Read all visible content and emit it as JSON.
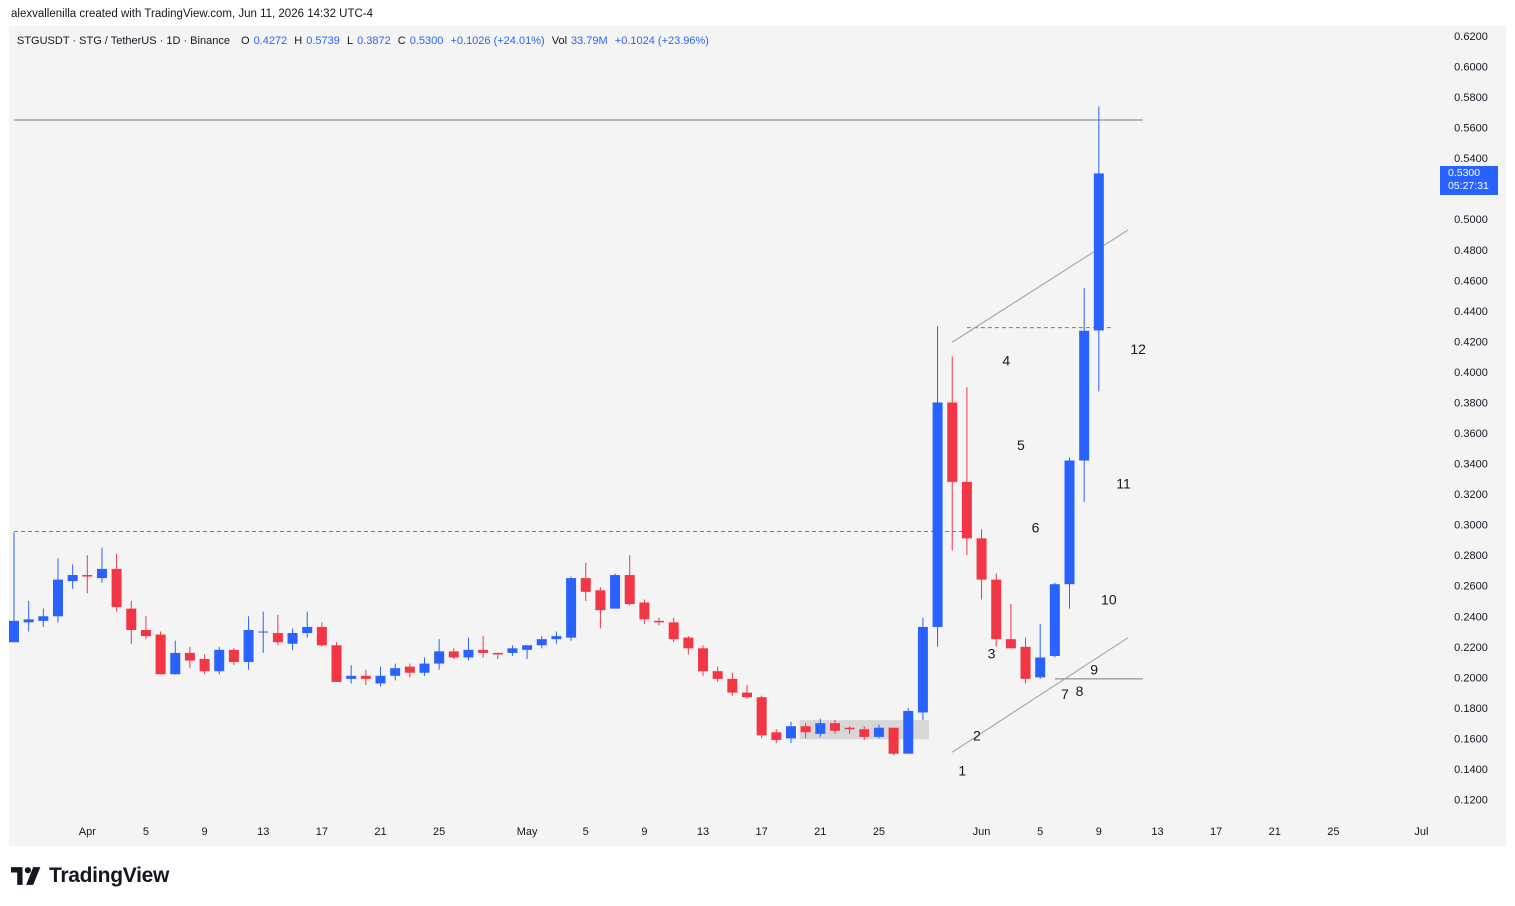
{
  "header": {
    "credit": "alexvallenilla created with TradingView.com, Jun 11, 2026 14:32 UTC-4"
  },
  "legend": {
    "symbol": "STGUSDT · STG / TetherUS · 1D · Binance",
    "open_label": "O",
    "open": "0.4272",
    "high_label": "H",
    "high": "0.5739",
    "low_label": "L",
    "low": "0.3872",
    "close_label": "C",
    "close": "0.5300",
    "change": "+0.1026 (+24.01%)",
    "vol_label": "Vol",
    "vol": "33.79M",
    "vol_change": "+0.1024 (+23.96%)"
  },
  "price_badge": {
    "price": "0.5300",
    "countdown": "05:27:31"
  },
  "footer": {
    "logo_text": "TradingView",
    "logo_icon": "tradingview-logo-icon"
  },
  "colors": {
    "up": "#2962ff",
    "down": "#f23645",
    "accent": "#2962ff",
    "text": "#131722",
    "background": "#f4f4f4",
    "line": "#9e9e9e"
  },
  "chart_data": {
    "type": "candlestick",
    "symbol": "STGUSDT",
    "interval": "1D",
    "ylim": [
      0.11,
      0.625
    ],
    "y_ticks": [
      "0.6200",
      "0.6000",
      "0.5800",
      "0.5600",
      "0.5400",
      "0.5200",
      "0.5000",
      "0.4800",
      "0.4600",
      "0.4400",
      "0.4200",
      "0.4000",
      "0.3800",
      "0.3600",
      "0.3400",
      "0.3200",
      "0.3000",
      "0.2800",
      "0.2600",
      "0.2400",
      "0.2200",
      "0.2000",
      "0.1800",
      "0.1600",
      "0.1400",
      "0.1200"
    ],
    "x_ticks": [
      {
        "label": "Apr",
        "date": "2026-04-01"
      },
      {
        "label": "5",
        "date": "2026-04-05"
      },
      {
        "label": "9",
        "date": "2026-04-09"
      },
      {
        "label": "13",
        "date": "2026-04-13"
      },
      {
        "label": "17",
        "date": "2026-04-17"
      },
      {
        "label": "21",
        "date": "2026-04-21"
      },
      {
        "label": "25",
        "date": "2026-04-25"
      },
      {
        "label": "May",
        "date": "2026-05-01"
      },
      {
        "label": "5",
        "date": "2026-05-05"
      },
      {
        "label": "9",
        "date": "2026-05-09"
      },
      {
        "label": "13",
        "date": "2026-05-13"
      },
      {
        "label": "17",
        "date": "2026-05-17"
      },
      {
        "label": "21",
        "date": "2026-05-21"
      },
      {
        "label": "25",
        "date": "2026-05-25"
      },
      {
        "label": "Jun",
        "date": "2026-06-01"
      },
      {
        "label": "5",
        "date": "2026-06-05"
      },
      {
        "label": "9",
        "date": "2026-06-09"
      },
      {
        "label": "13",
        "date": "2026-06-13"
      },
      {
        "label": "17",
        "date": "2026-06-17"
      },
      {
        "label": "21",
        "date": "2026-06-21"
      },
      {
        "label": "25",
        "date": "2026-06-25"
      },
      {
        "label": "Jul",
        "date": "2026-07-01"
      }
    ],
    "first_date": "2026-03-27",
    "candles": [
      {
        "o": 0.223,
        "h": 0.295,
        "l": 0.223,
        "c": 0.237
      },
      {
        "o": 0.236,
        "h": 0.25,
        "l": 0.23,
        "c": 0.238
      },
      {
        "o": 0.237,
        "h": 0.245,
        "l": 0.233,
        "c": 0.24
      },
      {
        "o": 0.24,
        "h": 0.278,
        "l": 0.236,
        "c": 0.264
      },
      {
        "o": 0.263,
        "h": 0.274,
        "l": 0.258,
        "c": 0.267
      },
      {
        "o": 0.267,
        "h": 0.28,
        "l": 0.255,
        "c": 0.266
      },
      {
        "o": 0.265,
        "h": 0.285,
        "l": 0.262,
        "c": 0.271
      },
      {
        "o": 0.271,
        "h": 0.281,
        "l": 0.243,
        "c": 0.246
      },
      {
        "o": 0.245,
        "h": 0.25,
        "l": 0.222,
        "c": 0.231
      },
      {
        "o": 0.231,
        "h": 0.24,
        "l": 0.225,
        "c": 0.227
      },
      {
        "o": 0.228,
        "h": 0.23,
        "l": 0.202,
        "c": 0.202
      },
      {
        "o": 0.202,
        "h": 0.224,
        "l": 0.202,
        "c": 0.216
      },
      {
        "o": 0.216,
        "h": 0.22,
        "l": 0.206,
        "c": 0.211
      },
      {
        "o": 0.212,
        "h": 0.215,
        "l": 0.202,
        "c": 0.204
      },
      {
        "o": 0.204,
        "h": 0.22,
        "l": 0.202,
        "c": 0.218
      },
      {
        "o": 0.218,
        "h": 0.219,
        "l": 0.208,
        "c": 0.21
      },
      {
        "o": 0.21,
        "h": 0.24,
        "l": 0.205,
        "c": 0.231
      },
      {
        "o": 0.23,
        "h": 0.243,
        "l": 0.216,
        "c": 0.23
      },
      {
        "o": 0.229,
        "h": 0.241,
        "l": 0.221,
        "c": 0.223
      },
      {
        "o": 0.222,
        "h": 0.232,
        "l": 0.218,
        "c": 0.229
      },
      {
        "o": 0.229,
        "h": 0.243,
        "l": 0.226,
        "c": 0.233
      },
      {
        "o": 0.233,
        "h": 0.236,
        "l": 0.22,
        "c": 0.221
      },
      {
        "o": 0.221,
        "h": 0.223,
        "l": 0.197,
        "c": 0.197
      },
      {
        "o": 0.199,
        "h": 0.208,
        "l": 0.196,
        "c": 0.201
      },
      {
        "o": 0.201,
        "h": 0.205,
        "l": 0.195,
        "c": 0.199
      },
      {
        "o": 0.196,
        "h": 0.207,
        "l": 0.194,
        "c": 0.201
      },
      {
        "o": 0.201,
        "h": 0.209,
        "l": 0.198,
        "c": 0.206
      },
      {
        "o": 0.207,
        "h": 0.209,
        "l": 0.2,
        "c": 0.203
      },
      {
        "o": 0.203,
        "h": 0.213,
        "l": 0.201,
        "c": 0.209
      },
      {
        "o": 0.209,
        "h": 0.225,
        "l": 0.205,
        "c": 0.217
      },
      {
        "o": 0.217,
        "h": 0.219,
        "l": 0.212,
        "c": 0.213
      },
      {
        "o": 0.213,
        "h": 0.226,
        "l": 0.211,
        "c": 0.218
      },
      {
        "o": 0.218,
        "h": 0.227,
        "l": 0.213,
        "c": 0.216
      },
      {
        "o": 0.216,
        "h": 0.216,
        "l": 0.212,
        "c": 0.215
      },
      {
        "o": 0.216,
        "h": 0.221,
        "l": 0.214,
        "c": 0.219
      },
      {
        "o": 0.218,
        "h": 0.221,
        "l": 0.212,
        "c": 0.221
      },
      {
        "o": 0.221,
        "h": 0.227,
        "l": 0.219,
        "c": 0.225
      },
      {
        "o": 0.225,
        "h": 0.23,
        "l": 0.222,
        "c": 0.227
      },
      {
        "o": 0.226,
        "h": 0.266,
        "l": 0.224,
        "c": 0.265
      },
      {
        "o": 0.265,
        "h": 0.275,
        "l": 0.25,
        "c": 0.256
      },
      {
        "o": 0.257,
        "h": 0.259,
        "l": 0.232,
        "c": 0.244
      },
      {
        "o": 0.245,
        "h": 0.268,
        "l": 0.245,
        "c": 0.267
      },
      {
        "o": 0.267,
        "h": 0.28,
        "l": 0.247,
        "c": 0.248
      },
      {
        "o": 0.249,
        "h": 0.251,
        "l": 0.235,
        "c": 0.238
      },
      {
        "o": 0.237,
        "h": 0.239,
        "l": 0.234,
        "c": 0.236
      },
      {
        "o": 0.236,
        "h": 0.239,
        "l": 0.223,
        "c": 0.225
      },
      {
        "o": 0.226,
        "h": 0.227,
        "l": 0.215,
        "c": 0.219
      },
      {
        "o": 0.219,
        "h": 0.221,
        "l": 0.201,
        "c": 0.204
      },
      {
        "o": 0.204,
        "h": 0.207,
        "l": 0.197,
        "c": 0.199
      },
      {
        "o": 0.199,
        "h": 0.203,
        "l": 0.188,
        "c": 0.19
      },
      {
        "o": 0.19,
        "h": 0.195,
        "l": 0.186,
        "c": 0.187
      },
      {
        "o": 0.187,
        "h": 0.188,
        "l": 0.16,
        "c": 0.162
      },
      {
        "o": 0.164,
        "h": 0.166,
        "l": 0.157,
        "c": 0.159
      },
      {
        "o": 0.16,
        "h": 0.171,
        "l": 0.157,
        "c": 0.168
      },
      {
        "o": 0.168,
        "h": 0.17,
        "l": 0.16,
        "c": 0.164
      },
      {
        "o": 0.163,
        "h": 0.173,
        "l": 0.161,
        "c": 0.17
      },
      {
        "o": 0.17,
        "h": 0.172,
        "l": 0.163,
        "c": 0.165
      },
      {
        "o": 0.167,
        "h": 0.168,
        "l": 0.163,
        "c": 0.166
      },
      {
        "o": 0.166,
        "h": 0.168,
        "l": 0.159,
        "c": 0.161
      },
      {
        "o": 0.161,
        "h": 0.169,
        "l": 0.16,
        "c": 0.167
      },
      {
        "o": 0.167,
        "h": 0.167,
        "l": 0.149,
        "c": 0.15
      },
      {
        "o": 0.15,
        "h": 0.18,
        "l": 0.15,
        "c": 0.178
      },
      {
        "o": 0.177,
        "h": 0.239,
        "l": 0.172,
        "c": 0.233
      },
      {
        "o": 0.233,
        "h": 0.43,
        "l": 0.22,
        "c": 0.38
      },
      {
        "o": 0.38,
        "h": 0.41,
        "l": 0.283,
        "c": 0.328
      },
      {
        "o": 0.328,
        "h": 0.39,
        "l": 0.28,
        "c": 0.291
      },
      {
        "o": 0.291,
        "h": 0.297,
        "l": 0.251,
        "c": 0.264
      },
      {
        "o": 0.264,
        "h": 0.268,
        "l": 0.22,
        "c": 0.225
      },
      {
        "o": 0.225,
        "h": 0.248,
        "l": 0.219,
        "c": 0.219
      },
      {
        "o": 0.22,
        "h": 0.226,
        "l": 0.196,
        "c": 0.199
      },
      {
        "o": 0.2,
        "h": 0.235,
        "l": 0.199,
        "c": 0.213
      },
      {
        "o": 0.214,
        "h": 0.262,
        "l": 0.213,
        "c": 0.261
      },
      {
        "o": 0.261,
        "h": 0.344,
        "l": 0.245,
        "c": 0.342
      },
      {
        "o": 0.342,
        "h": 0.455,
        "l": 0.315,
        "c": 0.427
      },
      {
        "o": 0.4272,
        "h": 0.5739,
        "l": 0.3872,
        "c": 0.53
      }
    ],
    "horizontal_lines": [
      {
        "price": 0.565,
        "style": "solid",
        "from_date": "2026-03-27",
        "to_date": "2026-06-12"
      },
      {
        "price": 0.2955,
        "style": "dashed",
        "from_date": "2026-03-27",
        "to_date": "2026-05-31"
      },
      {
        "price": 0.429,
        "style": "dashed",
        "from_date": "2026-05-31",
        "to_date": "2026-06-10"
      },
      {
        "price": 0.199,
        "style": "solid",
        "from_date": "2026-06-06",
        "to_date": "2026-06-12"
      }
    ],
    "trend_lines": [
      {
        "from": {
          "date": "2026-05-30",
          "price": 0.4195
        },
        "to": {
          "date": "2026-06-11",
          "price": 0.493
        }
      },
      {
        "from": {
          "date": "2026-05-30",
          "price": 0.151
        },
        "to": {
          "date": "2026-06-11",
          "price": 0.226
        }
      }
    ],
    "consolidation_box": {
      "from_date": "2026-05-20",
      "to_date": "2026-05-28",
      "top": 0.172,
      "bottom": 0.1595
    },
    "wave_labels": [
      {
        "text": "1",
        "date": "2026-05-30",
        "price": 0.139
      },
      {
        "text": "2",
        "date": "2026-05-31",
        "price": 0.162
      },
      {
        "text": "3",
        "date": "2026-06-01",
        "price": 0.2155
      },
      {
        "text": "4",
        "date": "2026-06-02",
        "price": 0.4075
      },
      {
        "text": "5",
        "date": "2026-06-03",
        "price": 0.352
      },
      {
        "text": "6",
        "date": "2026-06-04",
        "price": 0.298
      },
      {
        "text": "7",
        "date": "2026-06-06",
        "price": 0.189
      },
      {
        "text": "8",
        "date": "2026-06-07",
        "price": 0.191
      },
      {
        "text": "9",
        "date": "2026-06-08",
        "price": 0.205
      },
      {
        "text": "10",
        "date": "2026-06-09",
        "price": 0.251
      },
      {
        "text": "11",
        "date": "2026-06-10",
        "price": 0.327
      },
      {
        "text": "12",
        "date": "2026-06-11",
        "price": 0.415
      }
    ],
    "last_price": 0.53
  }
}
